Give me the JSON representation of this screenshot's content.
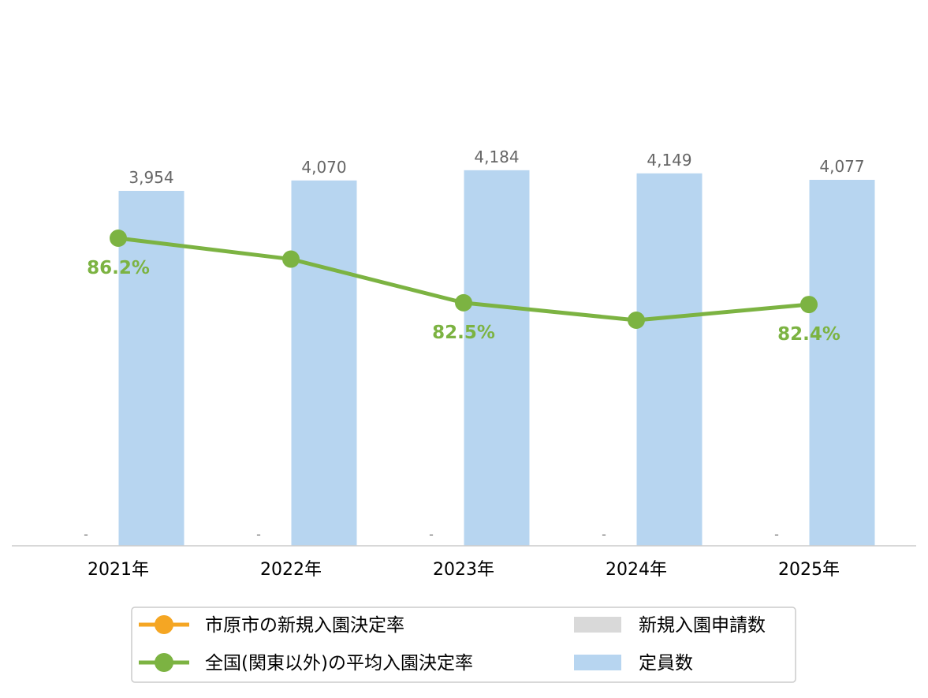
{
  "colors": {
    "capacity_bar": "#b7d5f0",
    "applications_bar": "#d9d9d9",
    "city_rate_line": "#f5a623",
    "national_rate_line": "#7cb342",
    "axis": "#cccccc",
    "bar_label": "#666666",
    "legend_border": "#cccccc"
  },
  "chart_data": {
    "type": "bar",
    "title": "",
    "xlabel": "",
    "ylabel": "",
    "categories": [
      "2021年",
      "2022年",
      "2023年",
      "2024年",
      "2025年"
    ],
    "bar_ylim": [
      0,
      4200
    ],
    "rate_ylim": [
      62,
      90
    ],
    "series": [
      {
        "name": "新規入園申請数",
        "kind": "bar",
        "values": [
          null,
          null,
          null,
          null,
          null
        ],
        "value_labels": [
          "-",
          "-",
          "-",
          "-",
          "-"
        ],
        "color": "#d9d9d9"
      },
      {
        "name": "定員数",
        "kind": "bar",
        "values": [
          3954,
          4070,
          4184,
          4149,
          4077
        ],
        "value_labels": [
          "3,954",
          "4,070",
          "4,184",
          "4,149",
          "4,077"
        ],
        "color": "#b7d5f0"
      },
      {
        "name": "市原市の新規入園決定率",
        "kind": "line",
        "values": [
          null,
          null,
          null,
          null,
          null
        ],
        "color": "#f5a623"
      },
      {
        "name": "全国(関東以外)の平均入園決定率",
        "kind": "line",
        "values": [
          86.2,
          85.0,
          82.5,
          81.5,
          82.4
        ],
        "value_labels": [
          "86.2%",
          "",
          "82.5%",
          "",
          "82.4%"
        ],
        "color": "#7cb342"
      }
    ],
    "legend": {
      "position": "bottom",
      "items": [
        {
          "label": "市原市の新規入園決定率",
          "marker": "line-dot",
          "color": "#f5a623"
        },
        {
          "label": "新規入園申請数",
          "marker": "box",
          "color": "#d9d9d9"
        },
        {
          "label": "全国(関東以外)の平均入園決定率",
          "marker": "line-dot",
          "color": "#7cb342"
        },
        {
          "label": "定員数",
          "marker": "box",
          "color": "#b7d5f0"
        }
      ]
    },
    "grid": false
  }
}
